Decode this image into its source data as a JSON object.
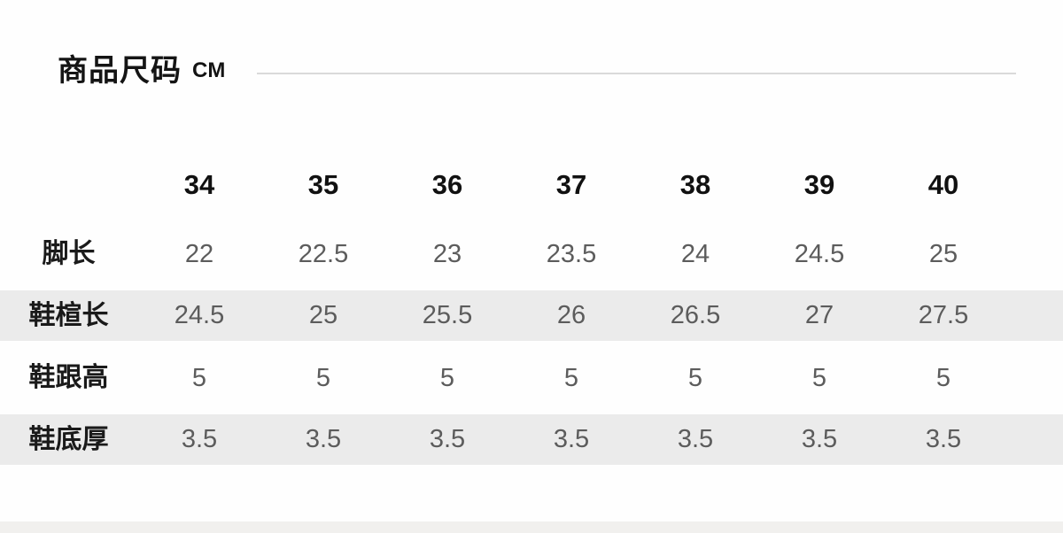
{
  "header": {
    "title": "商品尺码",
    "unit": "CM"
  },
  "chart_data": {
    "type": "table",
    "title": "商品尺码",
    "unit": "CM",
    "columns": [
      "34",
      "35",
      "36",
      "37",
      "38",
      "39",
      "40"
    ],
    "rows": [
      {
        "label": "脚长",
        "values": [
          "22",
          "22.5",
          "23",
          "23.5",
          "24",
          "24.5",
          "25"
        ]
      },
      {
        "label": "鞋楦长",
        "values": [
          "24.5",
          "25",
          "25.5",
          "26",
          "26.5",
          "27",
          "27.5"
        ]
      },
      {
        "label": "鞋跟高",
        "values": [
          "5",
          "5",
          "5",
          "5",
          "5",
          "5",
          "5"
        ]
      },
      {
        "label": "鞋底厚",
        "values": [
          "3.5",
          "3.5",
          "3.5",
          "3.5",
          "3.5",
          "3.5",
          "3.5"
        ]
      }
    ],
    "layout": {
      "striped_row_indexes": [
        1,
        3
      ],
      "stripe_color": "#ebebeb",
      "header_text_color": "#111111",
      "label_text_color": "#1a1a1a",
      "value_text_color": "#5c5c5c",
      "divider_color": "#dadada",
      "bottom_bar_color": "#f1f0ee",
      "background_color": "#fefefe"
    }
  }
}
